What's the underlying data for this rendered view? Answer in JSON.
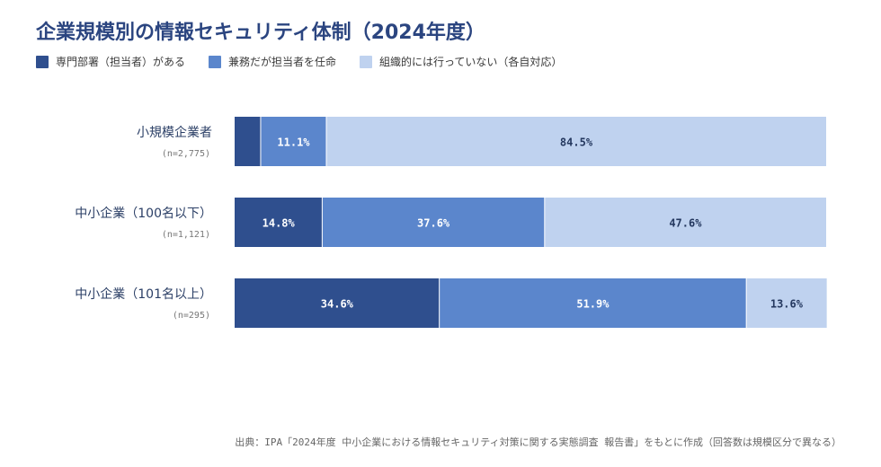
{
  "title": "企業規模別の情報セキュリティ体制（2024年度）",
  "colors": {
    "dedicated": "#2f4f8e",
    "concurrent": "#5b86cc",
    "none": "#bfd2ef",
    "label_dark": "#24385f",
    "label_light": "#ffffff"
  },
  "chart_data": {
    "type": "bar",
    "orientation": "horizontal",
    "stacked": true,
    "percent": true,
    "title": "企業規模別の情報セキュリティ体制（2024年度）",
    "xlim": [
      0,
      100
    ],
    "legend_position": "top-left",
    "categories": [
      {
        "name": "小規模企業者",
        "n": "(n=2,775)"
      },
      {
        "name": "中小企業（100名以下）",
        "n": "(n=1,121)"
      },
      {
        "name": "中小企業（101名以上）",
        "n": "(n=295)"
      }
    ],
    "series": [
      {
        "name": "専門部署（担当者）がある",
        "color": "#2f4f8e",
        "values": [
          4.4,
          14.8,
          34.6
        ],
        "labels": [
          "",
          "14.8%",
          "34.6%"
        ],
        "label_color": "#ffffff"
      },
      {
        "name": "兼務だが担当者を任命",
        "color": "#5b86cc",
        "values": [
          11.1,
          37.6,
          51.9
        ],
        "labels": [
          "11.1%",
          "37.6%",
          "51.9%"
        ],
        "label_color": "#ffffff"
      },
      {
        "name": "組織的には行っていない（各自対応）",
        "color": "#bfd2ef",
        "values": [
          84.5,
          47.6,
          13.6
        ],
        "labels": [
          "84.5%",
          "47.6%",
          "13.6%"
        ],
        "label_color": "#24385f"
      }
    ]
  },
  "source": "出典：IPA「2024年度 中小企業における情報セキュリティ対策に関する実態調査 報告書」をもとに作成（回答数は規模区分で異なる）"
}
